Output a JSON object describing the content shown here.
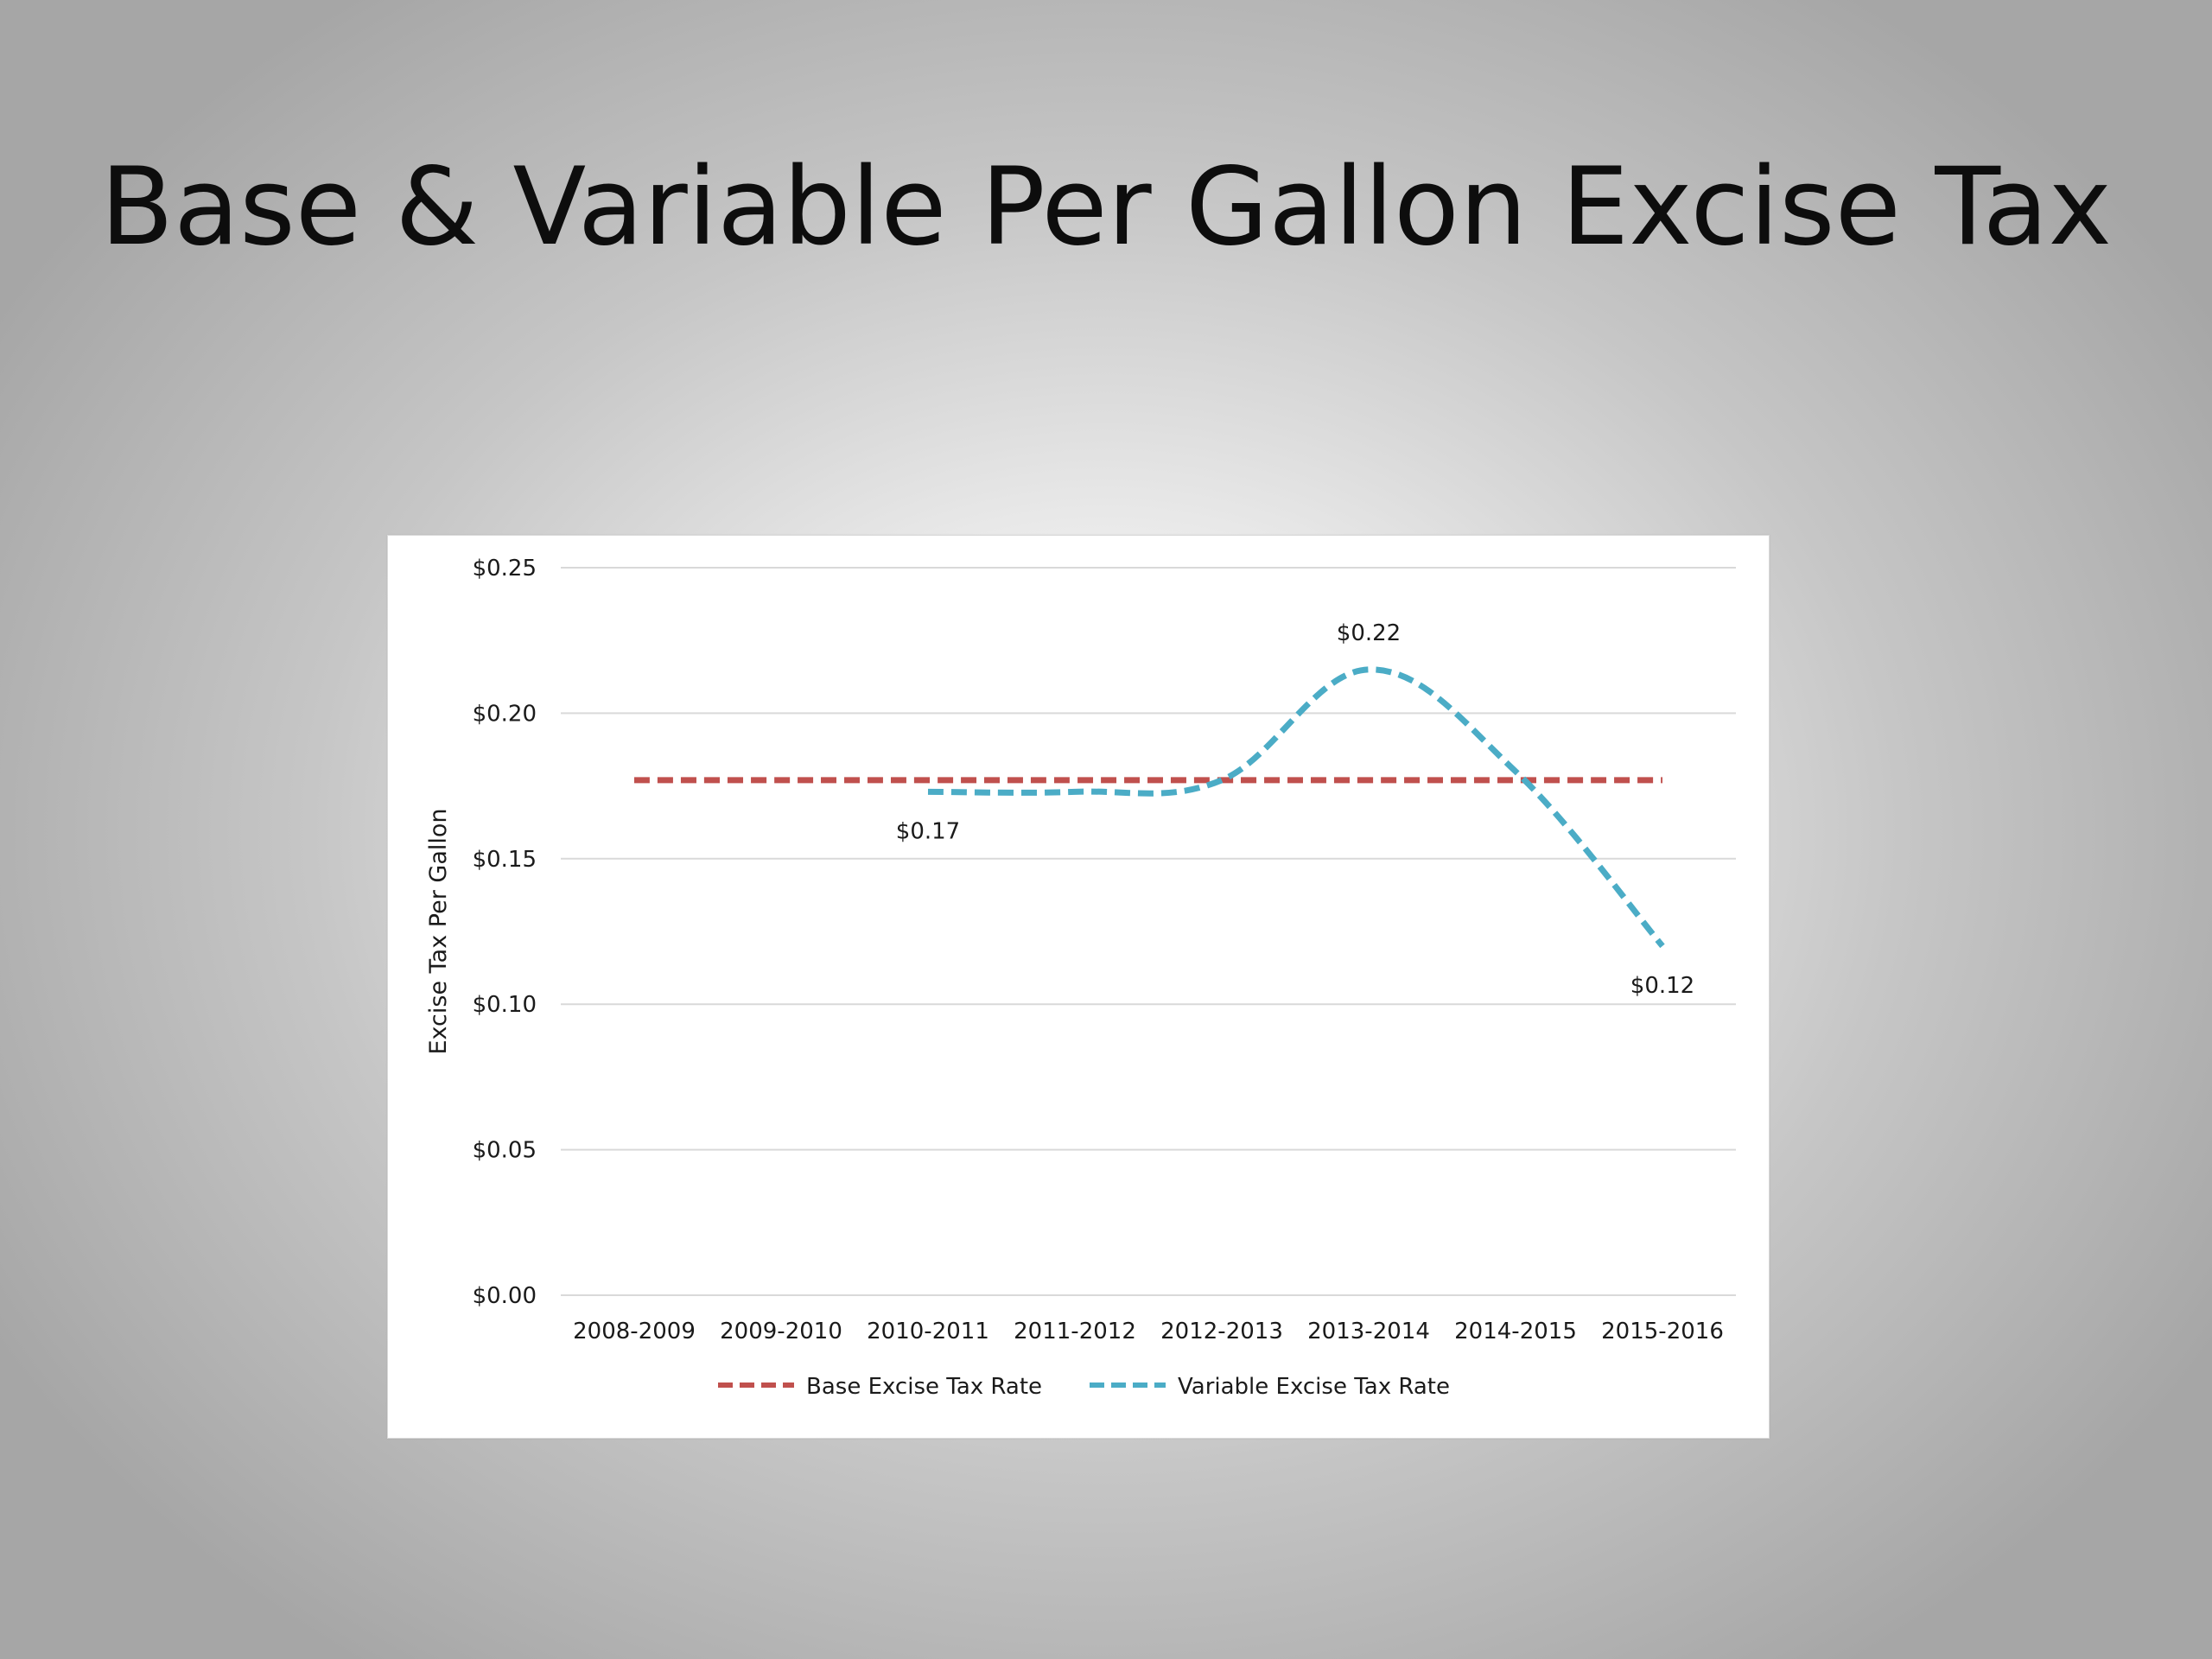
{
  "slide": {
    "title": "Base & Variable Per Gallon Excise Tax"
  },
  "chart_data": {
    "type": "line",
    "ylabel": "Excise Tax Per Gallon",
    "xlabel": "",
    "ylim": [
      0,
      0.25
    ],
    "yticks": [
      0,
      0.05,
      0.1,
      0.15,
      0.2,
      0.25
    ],
    "ytick_labels": [
      "$0.00",
      "$0.05",
      "$0.10",
      "$0.15",
      "$0.20",
      "$0.25"
    ],
    "grid": true,
    "legend_position": "bottom",
    "categories": [
      "2008-2009",
      "2009-2010",
      "2010-2011",
      "2011-2012",
      "2012-2013",
      "2013-2014",
      "2014-2015",
      "2015-2016"
    ],
    "series": [
      {
        "name": "Base Excise Tax Rate",
        "color": "#c0504d",
        "dash": true,
        "values": [
          0.177,
          0.177,
          0.177,
          0.177,
          0.177,
          0.177,
          0.177,
          0.177
        ]
      },
      {
        "name": "Variable Excise Tax Rate",
        "color": "#4bacc6",
        "dash": true,
        "values": [
          null,
          null,
          0.173,
          0.173,
          0.177,
          0.215,
          0.18,
          0.12
        ]
      }
    ],
    "data_labels": [
      {
        "series": 1,
        "index": 2,
        "text": "$0.17",
        "position": "below"
      },
      {
        "series": 1,
        "index": 5,
        "text": "$0.22",
        "position": "above"
      },
      {
        "series": 1,
        "index": 7,
        "text": "$0.12",
        "position": "below"
      }
    ]
  }
}
